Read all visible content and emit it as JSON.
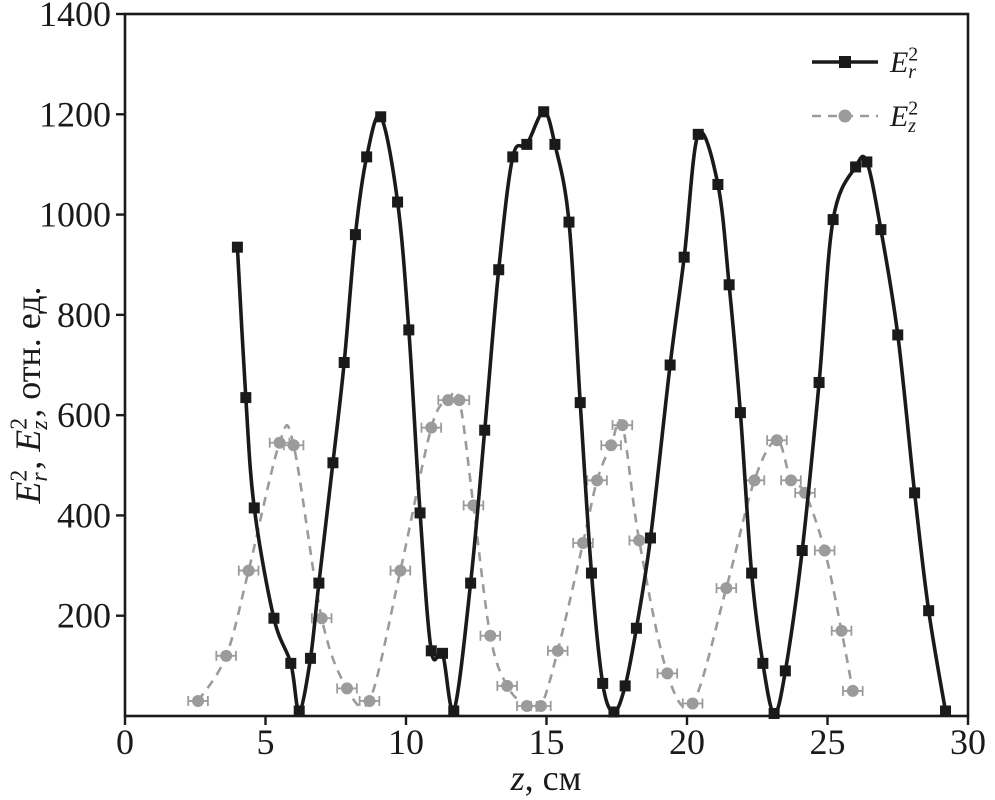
{
  "figure": {
    "background": "#ffffff"
  },
  "chart_data": {
    "type": "line",
    "title": "",
    "xlabel_segments": [
      {
        "text": "z",
        "italic": true
      },
      {
        "text": ", см"
      }
    ],
    "ylabel_segments": [
      {
        "text": "E",
        "italic": true
      },
      {
        "text": "r",
        "italic": true,
        "script": "sub"
      },
      {
        "text": "2",
        "script": "sup"
      },
      {
        "text": ", "
      },
      {
        "text": "E",
        "italic": true
      },
      {
        "text": "z",
        "italic": true,
        "script": "sub"
      },
      {
        "text": "2",
        "script": "sup"
      },
      {
        "text": ", отн. ед."
      }
    ],
    "xlim": [
      0,
      30
    ],
    "ylim": [
      0,
      1400
    ],
    "xticks": [
      0,
      5,
      10,
      15,
      20,
      25,
      30
    ],
    "yticks": [
      200,
      400,
      600,
      800,
      1000,
      1200,
      1400
    ],
    "grid": false,
    "axis_color": "#1a1a1a",
    "legend_position": "top-right",
    "series": [
      {
        "id": "er2",
        "legend": {
          "base": "E",
          "sub": "r",
          "sup": "2"
        },
        "color": "#1a1a1a",
        "line_style": "solid",
        "marker": "square",
        "points": [
          [
            4.0,
            935
          ],
          [
            4.3,
            635
          ],
          [
            4.6,
            415
          ],
          [
            5.3,
            195
          ],
          [
            5.9,
            105
          ],
          [
            6.2,
            10
          ],
          [
            6.6,
            115
          ],
          [
            6.9,
            265
          ],
          [
            7.4,
            505
          ],
          [
            7.8,
            705
          ],
          [
            8.2,
            960
          ],
          [
            8.6,
            1115
          ],
          [
            9.1,
            1195
          ],
          [
            9.7,
            1025
          ],
          [
            10.1,
            770
          ],
          [
            10.5,
            405
          ],
          [
            10.9,
            130
          ],
          [
            11.3,
            125
          ],
          [
            11.7,
            10
          ],
          [
            12.3,
            265
          ],
          [
            12.8,
            570
          ],
          [
            13.3,
            890
          ],
          [
            13.8,
            1115
          ],
          [
            14.3,
            1140
          ],
          [
            14.9,
            1205
          ],
          [
            15.3,
            1140
          ],
          [
            15.8,
            985
          ],
          [
            16.2,
            625
          ],
          [
            16.6,
            285
          ],
          [
            17.0,
            65
          ],
          [
            17.4,
            8
          ],
          [
            17.8,
            60
          ],
          [
            18.2,
            175
          ],
          [
            18.7,
            355
          ],
          [
            19.4,
            700
          ],
          [
            19.9,
            915
          ],
          [
            20.4,
            1160
          ],
          [
            21.1,
            1060
          ],
          [
            21.5,
            860
          ],
          [
            21.9,
            605
          ],
          [
            22.3,
            285
          ],
          [
            22.7,
            105
          ],
          [
            23.1,
            5
          ],
          [
            23.5,
            90
          ],
          [
            24.1,
            330
          ],
          [
            24.7,
            665
          ],
          [
            25.2,
            990
          ],
          [
            26.0,
            1095
          ],
          [
            26.4,
            1105
          ],
          [
            26.9,
            970
          ],
          [
            27.5,
            760
          ],
          [
            28.1,
            445
          ],
          [
            28.6,
            210
          ],
          [
            29.2,
            10
          ]
        ]
      },
      {
        "id": "ez2",
        "legend": {
          "base": "E",
          "sub": "z",
          "sup": "2"
        },
        "color": "#9b9b9b",
        "line_style": "dashed",
        "marker": "circle",
        "x_error": 0.35,
        "points": [
          [
            2.6,
            30
          ],
          [
            3.6,
            120
          ],
          [
            4.4,
            290
          ],
          [
            5.5,
            545
          ],
          [
            6.0,
            540
          ],
          [
            7.0,
            195
          ],
          [
            7.9,
            55
          ],
          [
            8.7,
            30
          ],
          [
            9.8,
            290
          ],
          [
            10.9,
            575
          ],
          [
            11.5,
            630
          ],
          [
            11.9,
            630
          ],
          [
            12.4,
            420
          ],
          [
            13.0,
            160
          ],
          [
            13.6,
            60
          ],
          [
            14.3,
            20
          ],
          [
            14.8,
            20
          ],
          [
            15.4,
            130
          ],
          [
            16.3,
            345
          ],
          [
            16.8,
            470
          ],
          [
            17.3,
            540
          ],
          [
            17.7,
            580
          ],
          [
            18.3,
            350
          ],
          [
            19.3,
            85
          ],
          [
            20.2,
            25
          ],
          [
            21.4,
            255
          ],
          [
            22.4,
            470
          ],
          [
            23.2,
            550
          ],
          [
            23.7,
            470
          ],
          [
            24.2,
            445
          ],
          [
            24.9,
            330
          ],
          [
            25.5,
            170
          ],
          [
            25.9,
            50
          ]
        ]
      }
    ]
  }
}
